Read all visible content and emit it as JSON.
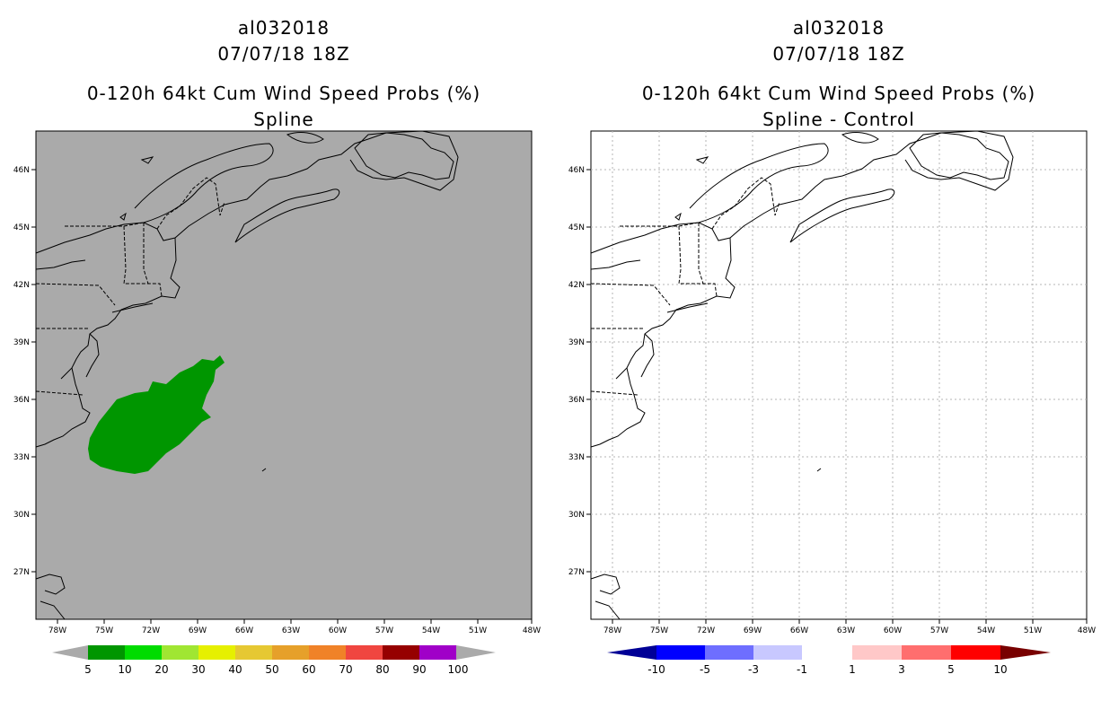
{
  "left_panel": {
    "title_line1": "al032018",
    "title_line2": "07/07/18 18Z",
    "title_line3": "0-120h 64kt Cum Wind Speed Probs (%)",
    "title_line4": "Spline",
    "background_color": "#aaaaaa",
    "fill_color": "#009600",
    "colorbar": {
      "labels": [
        "5",
        "10",
        "20",
        "30",
        "40",
        "50",
        "60",
        "70",
        "80",
        "90",
        "100"
      ],
      "colors": [
        "#009600",
        "#00dc00",
        "#a0e632",
        "#e6f000",
        "#e6c832",
        "#e6a02a",
        "#f08228",
        "#f04640",
        "#960000",
        "#a000c8"
      ],
      "end_color": "#aaaaaa"
    }
  },
  "right_panel": {
    "title_line1": "al032018",
    "title_line2": "07/07/18 18Z",
    "title_line3": "0-120h 64kt Cum Wind Speed Probs (%)",
    "title_line4": "Spline - Control",
    "background_color": "#ffffff",
    "colorbar": {
      "labels": [
        "-10",
        "-5",
        "-3",
        "-1",
        "1",
        "3",
        "5",
        "10"
      ],
      "colors": [
        "#0000ff",
        "#6e6eff",
        "#c8c8ff",
        "#ffffff",
        "#ffc8c8",
        "#ff6e6e",
        "#ff0000"
      ],
      "left_end_color": "#000096",
      "right_end_color": "#780000"
    }
  },
  "axes": {
    "lon_labels": [
      "78W",
      "75W",
      "72W",
      "69W",
      "66W",
      "63W",
      "60W",
      "57W",
      "54W",
      "51W",
      "48W"
    ],
    "lat_labels": [
      "46N",
      "45N",
      "42N",
      "39N",
      "36N",
      "33N",
      "30N",
      "27N"
    ]
  }
}
